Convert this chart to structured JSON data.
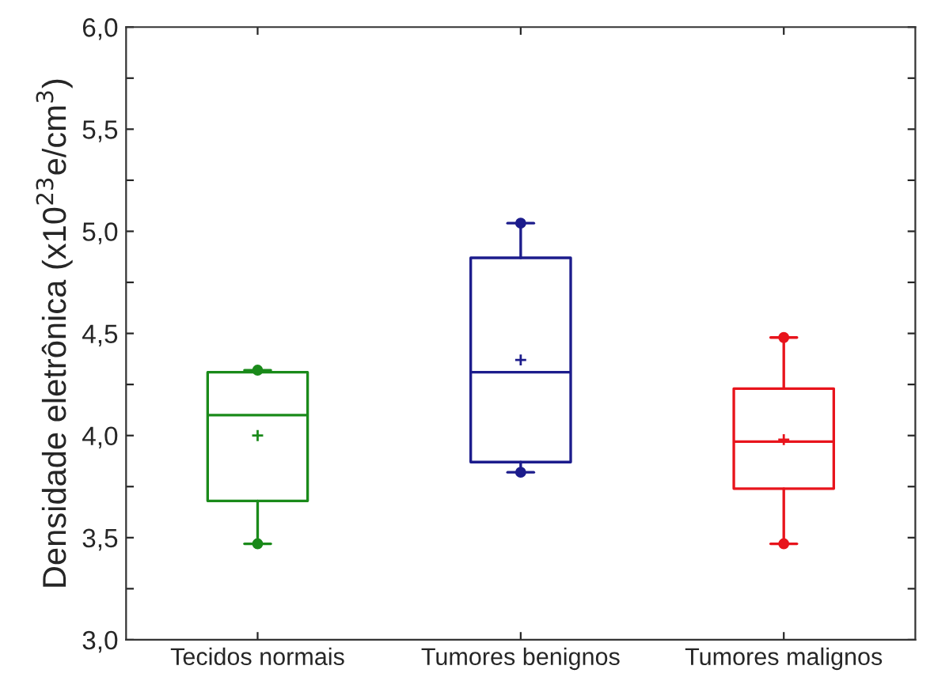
{
  "chart_data": {
    "type": "box",
    "ylabel": "Densidade eletrônica (x10$^{23}$e/cm$^{3}$)",
    "categories": [
      "Tecidos normais",
      "Tumores benignos",
      "Tumores malignos"
    ],
    "colors": [
      "#1a8a1a",
      "#1c1c8c",
      "#e8141c"
    ],
    "boxes": [
      {
        "low": 3.47,
        "q1": 3.68,
        "median": 4.1,
        "q3": 4.31,
        "high": 4.32,
        "mean": 4.0,
        "outliers": [
          3.47,
          4.32
        ]
      },
      {
        "low": 3.82,
        "q1": 3.87,
        "median": 4.31,
        "q3": 4.87,
        "high": 5.04,
        "mean": 4.37,
        "outliers": [
          3.82,
          5.04
        ]
      },
      {
        "low": 3.47,
        "q1": 3.74,
        "median": 3.97,
        "q3": 4.23,
        "high": 4.48,
        "mean": 3.98,
        "outliers": [
          3.47,
          4.48
        ]
      }
    ],
    "ylim": [
      3.0,
      6.0
    ],
    "yticks": [
      {
        "value": 3.0,
        "label": "3,0"
      },
      {
        "value": 3.25,
        "label": null
      },
      {
        "value": 3.5,
        "label": "3,5"
      },
      {
        "value": 3.75,
        "label": null
      },
      {
        "value": 4.0,
        "label": "4,0"
      },
      {
        "value": 4.25,
        "label": null
      },
      {
        "value": 4.5,
        "label": "4,5"
      },
      {
        "value": 4.75,
        "label": null
      },
      {
        "value": 5.0,
        "label": "5,0"
      },
      {
        "value": 5.25,
        "label": null
      },
      {
        "value": 5.5,
        "label": "5,5"
      },
      {
        "value": 5.75,
        "label": null
      },
      {
        "value": 6.0,
        "label": "6,0"
      }
    ],
    "grid": false,
    "legend": false
  }
}
